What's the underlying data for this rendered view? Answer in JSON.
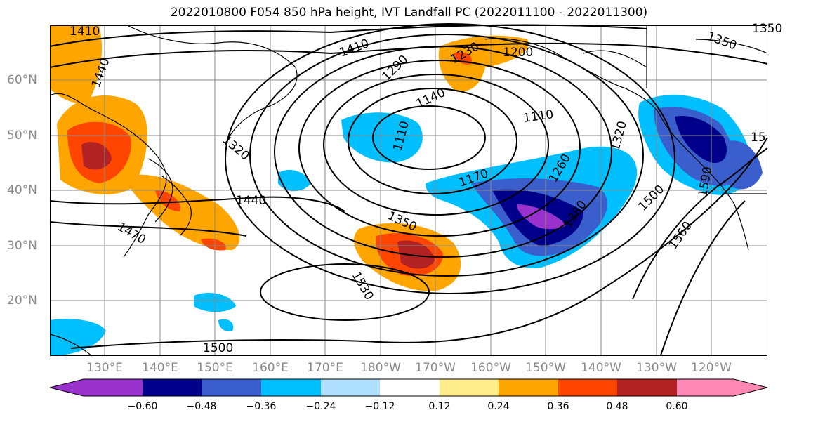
{
  "title": "2022010800 F054 850 hPa height, IVT Landfall PC (2022011100 - 2022011300)",
  "map": {
    "lon_labels": [
      "130°E",
      "140°E",
      "150°E",
      "160°E",
      "170°E",
      "180°W",
      "170°W",
      "160°W",
      "150°W",
      "140°W",
      "130°W",
      "120°W"
    ],
    "lat_labels": [
      "60°N",
      "50°N",
      "40°N",
      "30°N",
      "20°N"
    ],
    "contour_labels": [
      "1410",
      "1440",
      "1410",
      "1290",
      "1230",
      "1200",
      "1350",
      "1350",
      "1140",
      "1110",
      "1110",
      "1320",
      "1320",
      "1260",
      "1170",
      "1380",
      "1440",
      "1350",
      "1500",
      "1560",
      "1530",
      "1500",
      "1470",
      "1590",
      "15"
    ],
    "coastline_color": "#000000",
    "grid_color": "#8a8a8a"
  },
  "colorbar": {
    "colors": [
      "#9932cc",
      "#00008b",
      "#3a5fcd",
      "#00bfff",
      "#b0e0ff",
      "#ffffff",
      "#ffec8b",
      "#ffa500",
      "#ff4500",
      "#b22222",
      "#ff89b5"
    ],
    "tick_labels": [
      "−0.60",
      "−0.48",
      "−0.36",
      "−0.24",
      "−0.12",
      "0.12",
      "0.24",
      "0.36",
      "0.48",
      "0.60"
    ]
  }
}
